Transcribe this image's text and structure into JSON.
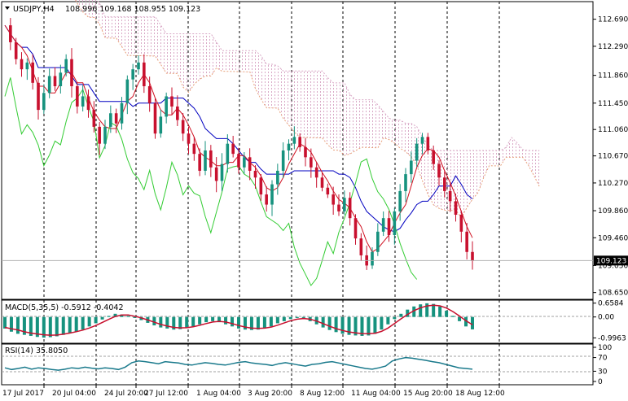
{
  "chart_data": [
    {
      "type": "candlestick",
      "title": "USDJPY,H4",
      "header_values": "108.996 109.168 108.955 109.123",
      "x_tick_labels": [
        "17 Jul 2017",
        "20 Jul 04:00",
        "24 Jul 20:00",
        "27 Jul 12:00",
        "1 Aug 04:00",
        "3 Aug 20:00",
        "8 Aug 12:00",
        "11 Aug 04:00",
        "15 Aug 20:00",
        "18 Aug 12:00"
      ],
      "y_tick_labels": [
        "112.690",
        "112.290",
        "111.860",
        "111.450",
        "111.060",
        "110.670",
        "110.270",
        "109.860",
        "109.460",
        "109.050",
        "108.650"
      ],
      "ylim": [
        108.55,
        112.95
      ],
      "current_price": "109.123",
      "current_price_value": 109.123,
      "indicators": [
        "Ichimoku Kinko Hyo cloud",
        "Tenkan-sen",
        "Kijun-sen",
        "Chikou span"
      ],
      "price_path": [
        112.6,
        112.35,
        112.1,
        111.95,
        112.05,
        111.75,
        111.35,
        111.6,
        111.85,
        111.7,
        111.9,
        112.1,
        111.7,
        111.4,
        111.55,
        111.35,
        111.1,
        110.85,
        111.1,
        111.3,
        111.15,
        111.45,
        111.8,
        111.95,
        112.05,
        111.7,
        111.45,
        111.0,
        111.25,
        111.55,
        111.4,
        111.2,
        111.0,
        110.85,
        110.7,
        110.45,
        110.75,
        110.5,
        110.3,
        110.55,
        110.85,
        110.7,
        110.5,
        110.65,
        110.45,
        110.35,
        110.1,
        109.95,
        110.25,
        110.45,
        110.75,
        110.85,
        110.95,
        110.8,
        110.65,
        110.5,
        110.35,
        110.2,
        110.1,
        109.95,
        109.85,
        110.05,
        109.75,
        109.45,
        109.2,
        109.05,
        109.25,
        109.55,
        109.75,
        109.5,
        109.85,
        110.15,
        110.4,
        110.6,
        110.85,
        110.95,
        110.75,
        110.55,
        110.35,
        110.15,
        110.0,
        109.8,
        109.55,
        109.25,
        109.12
      ]
    },
    {
      "type": "histogram",
      "title": "MACD(5,35,5) -0.5912 -0.4042",
      "y_tick_labels": [
        "0.6584",
        "0.00",
        "-0.9963"
      ],
      "ylim": [
        -1.25,
        0.8
      ],
      "values": [
        -0.55,
        -0.7,
        -0.8,
        -0.85,
        -0.9,
        -0.95,
        -0.98,
        -0.96,
        -0.92,
        -0.85,
        -0.78,
        -0.7,
        -0.6,
        -0.45,
        -0.3,
        -0.12,
        0.05,
        0.15,
        0.12,
        0.05,
        -0.05,
        -0.15,
        -0.28,
        -0.4,
        -0.5,
        -0.55,
        -0.6,
        -0.58,
        -0.52,
        -0.45,
        -0.35,
        -0.25,
        -0.2,
        -0.25,
        -0.35,
        -0.45,
        -0.55,
        -0.6,
        -0.62,
        -0.6,
        -0.55,
        -0.45,
        -0.3,
        -0.2,
        -0.1,
        -0.05,
        -0.1,
        -0.2,
        -0.35,
        -0.5,
        -0.62,
        -0.72,
        -0.8,
        -0.85,
        -0.88,
        -0.9,
        -0.88,
        -0.8,
        -0.6,
        -0.35,
        -0.1,
        0.15,
        0.35,
        0.5,
        0.6,
        0.65,
        0.62,
        0.5,
        0.3,
        0.05,
        -0.2,
        -0.45,
        -0.59
      ]
    },
    {
      "type": "line",
      "title": "RSI(14) 35.8050",
      "y_tick_labels": [
        "100",
        "70",
        "30",
        "0"
      ],
      "ylim": [
        0,
        100
      ],
      "values": [
        40,
        35,
        38,
        42,
        36,
        40,
        38,
        35,
        33,
        36,
        40,
        38,
        42,
        39,
        37,
        40,
        38,
        35,
        42,
        55,
        60,
        58,
        55,
        52,
        58,
        56,
        54,
        50,
        48,
        52,
        55,
        53,
        50,
        48,
        52,
        56,
        58,
        54,
        52,
        50,
        47,
        52,
        55,
        52,
        48,
        45,
        50,
        52,
        56,
        58,
        54,
        50,
        46,
        42,
        38,
        36,
        40,
        45,
        60,
        66,
        70,
        68,
        65,
        62,
        58,
        55,
        50,
        45,
        40,
        38,
        36
      ]
    }
  ]
}
